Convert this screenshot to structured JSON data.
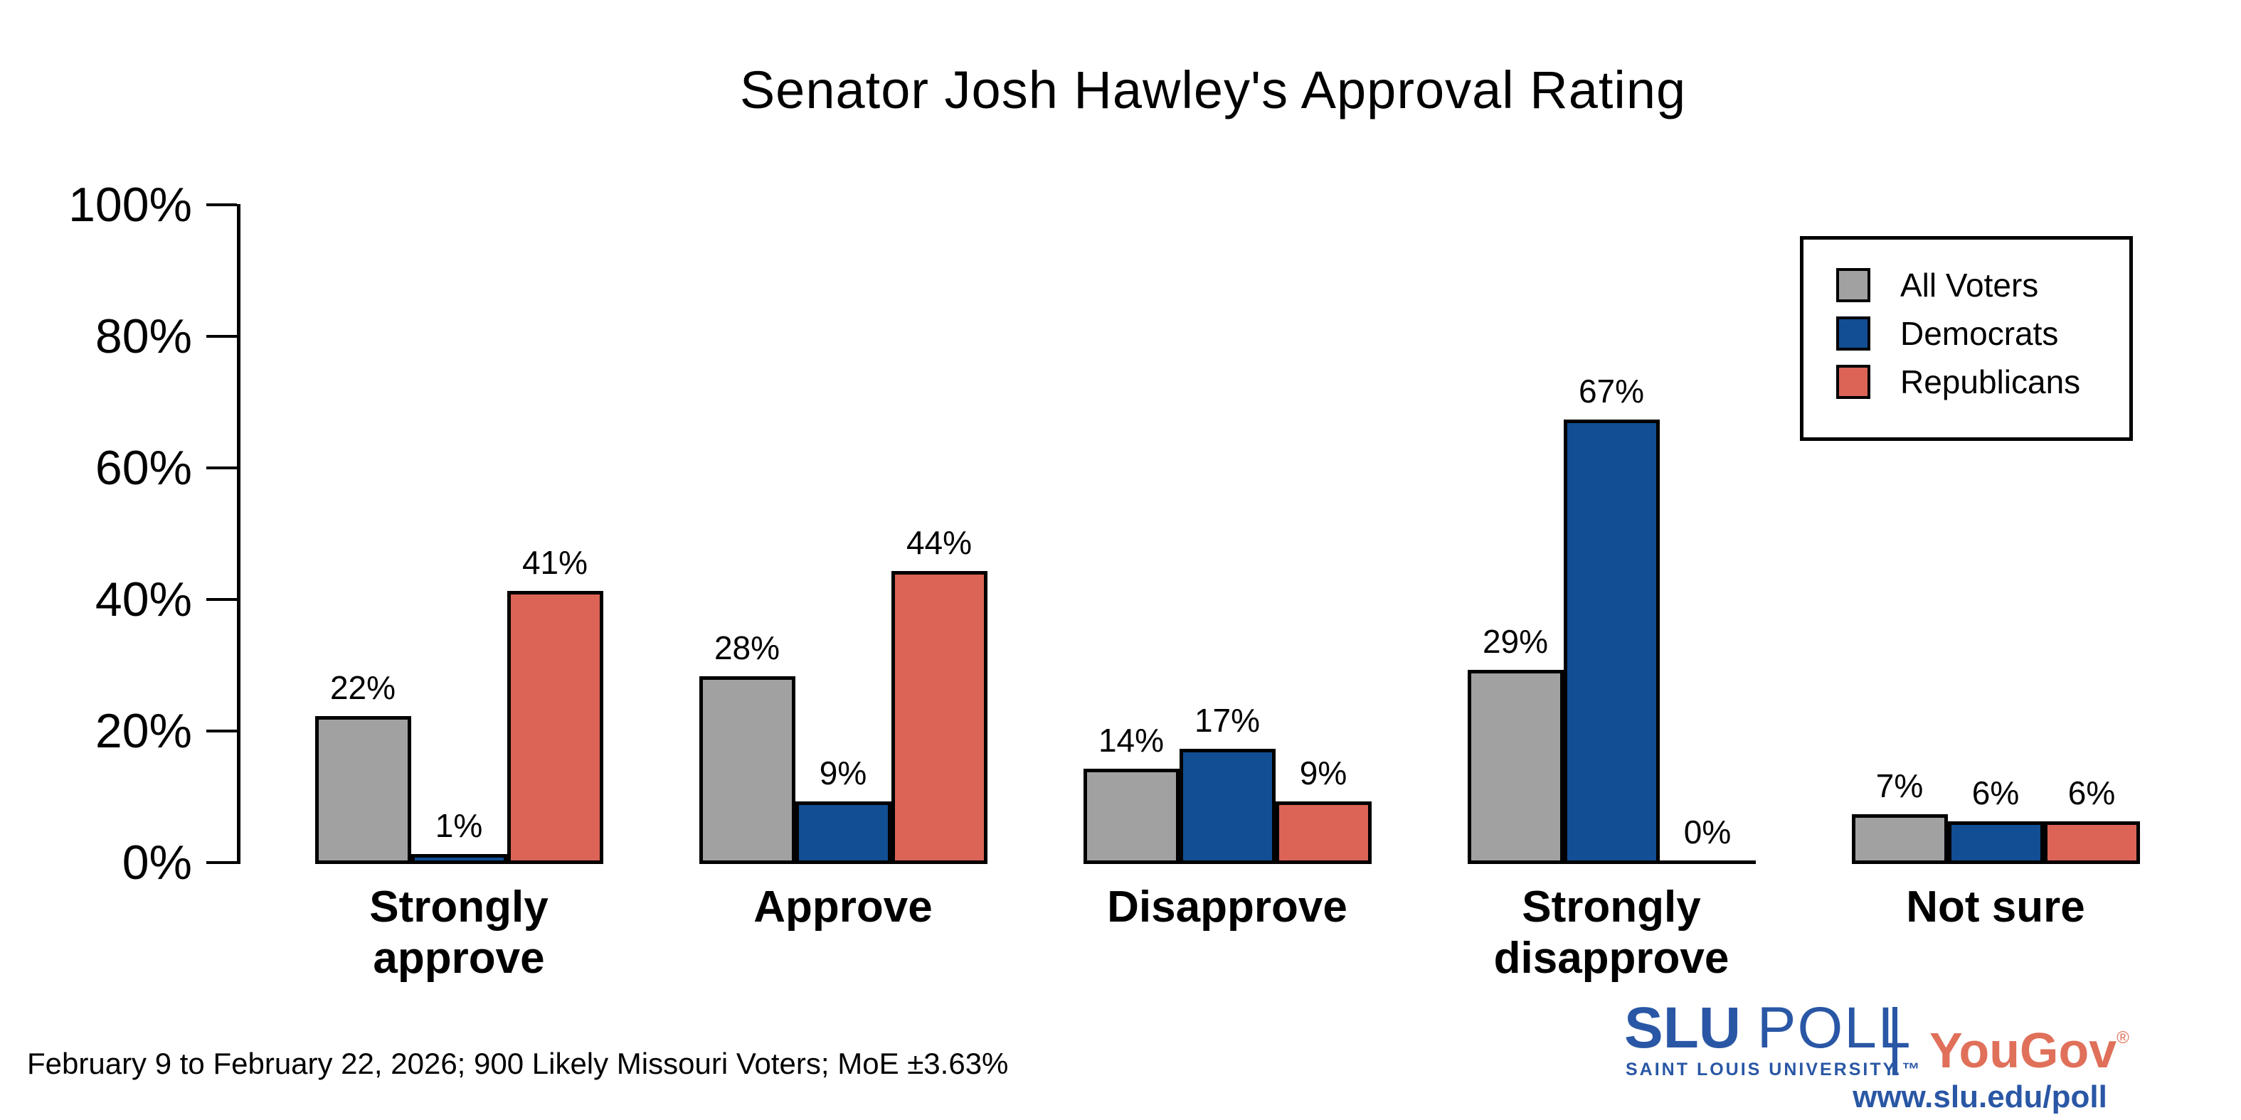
{
  "title": "Senator Josh Hawley's Approval Rating",
  "footer": "February 9 to February 22, 2026; 900 Likely Missouri Voters; MoE ±3.63%",
  "colors": {
    "all_voters": "#a1a1a1",
    "democrats": "#114e93",
    "republicans": "#db6457",
    "axis": "#000000",
    "slu_blue": "#2a57a5",
    "yougov_salmon": "#e0705a"
  },
  "chart_data": {
    "type": "bar",
    "title": "Senator Josh Hawley's Approval Rating",
    "xlabel": "",
    "ylabel": "",
    "ylim": [
      0,
      100
    ],
    "grid": false,
    "legend_position": "top-right",
    "y_ticks": [
      "0%",
      "20%",
      "40%",
      "60%",
      "80%",
      "100%"
    ],
    "categories": [
      "Strongly approve",
      "Approve",
      "Disapprove",
      "Strongly disapprove",
      "Not sure"
    ],
    "category_lines": [
      [
        "Strongly",
        "approve"
      ],
      [
        "Approve"
      ],
      [
        "Disapprove"
      ],
      [
        "Strongly",
        "disapprove"
      ],
      [
        "Not sure"
      ]
    ],
    "series": [
      {
        "name": "All Voters",
        "color": "#a1a1a1",
        "values": [
          22,
          28,
          14,
          29,
          7
        ]
      },
      {
        "name": "Democrats",
        "color": "#114e93",
        "values": [
          1,
          9,
          17,
          67,
          6
        ]
      },
      {
        "name": "Republicans",
        "color": "#db6457",
        "values": [
          41,
          44,
          9,
          0,
          6
        ]
      }
    ],
    "value_label_suffix": "%"
  },
  "branding": {
    "slu": "SLU",
    "poll": "POLL",
    "subtitle": "SAINT LOUIS UNIVERSITY.™",
    "yougov": "YouGov",
    "registered": "®",
    "url": "www.slu.edu/poll"
  }
}
